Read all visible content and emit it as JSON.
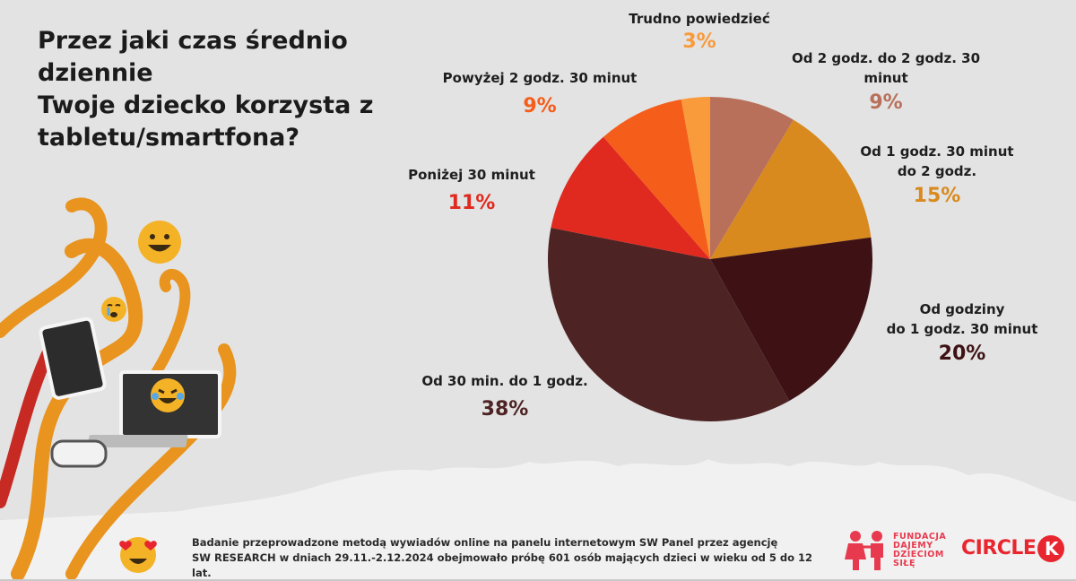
{
  "title": {
    "line1": "Przez jaki czas średnio dziennie",
    "line2": "Twoje dziecko korzysta z",
    "line3": "tabletu/smartfona?"
  },
  "chart_data": {
    "type": "pie",
    "start": "12 o'clock, clockwise",
    "slices": [
      {
        "label": "Od 2 godz. do 2 godz. 30 minut",
        "value": 9,
        "color": "#b8705a"
      },
      {
        "label": "Od 1 godz. 30 minut do 2 godz.",
        "value": 15,
        "color": "#d88a1e"
      },
      {
        "label": "Od godziny do 1 godz. 30 minut",
        "value": 20,
        "color": "#3e1214"
      },
      {
        "label": "Od 30 min. do 1 godz.",
        "value": 38,
        "color": "#4d2324"
      },
      {
        "label": "Poniżej 30 minut",
        "value": 11,
        "color": "#e02a1f"
      },
      {
        "label": "Powyżej 2 godz. 30 minut",
        "value": 9,
        "color": "#f55d1a"
      },
      {
        "label": "Trudno powiedzieć",
        "value": 3,
        "color": "#f99a3b"
      }
    ]
  },
  "labels": {
    "s0": {
      "l1": "Od 2 godz. do 2 godz. 30 minut",
      "pct": "9%",
      "color": "#b8705a"
    },
    "s1": {
      "l1": "Od 1 godz. 30 minut",
      "l2": "do 2 godz.",
      "pct": "15%",
      "color": "#d88a1e"
    },
    "s2": {
      "l1": "Od godziny",
      "l2": "do 1 godz. 30 minut",
      "pct": "20%",
      "color": "#3e1214"
    },
    "s3": {
      "l1": "Od 30 min. do 1 godz.",
      "pct": "38%",
      "color": "#4d2324"
    },
    "s4": {
      "l1": "Poniżej 30 minut",
      "pct": "11%",
      "color": "#e02a1f"
    },
    "s5": {
      "l1": "Powyżej 2 godz. 30 minut",
      "pct": "9%",
      "color": "#f55d1a"
    },
    "s6": {
      "l1": "Trudno powiedzieć",
      "pct": "3%",
      "color": "#f99a3b"
    }
  },
  "footer": {
    "line1": "Badanie przeprowadzone metodą wywiadów online na panelu internetowym SW Panel przez agencję",
    "line2": "SW RESEARCH w dniach 29.11.-2.12.2024 obejmowało próbę 601 osób mających dzieci w wieku od 5 do 12 lat."
  },
  "logos": {
    "fundacja": {
      "l1": "FUNDACJA",
      "l2": "DAJEMY",
      "l3": "DZIECIOM",
      "l4": "SIŁĘ"
    },
    "circle_k": {
      "text": "CIRCLE",
      "k": "K"
    }
  },
  "icons": [
    "grinning-emoji-icon",
    "crying-emoji-icon",
    "laughing-emoji-icon",
    "heart-eyes-emoji-icon"
  ]
}
